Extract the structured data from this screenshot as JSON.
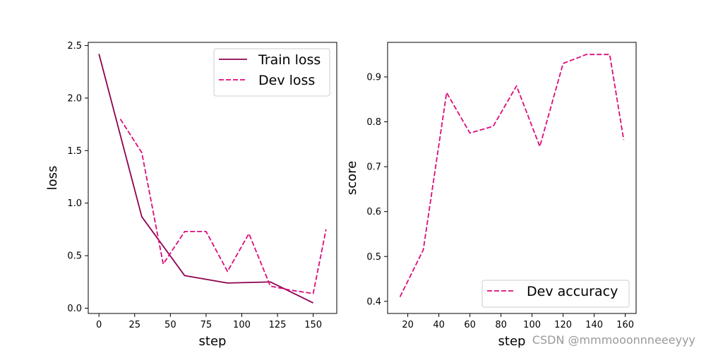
{
  "chart_data": [
    {
      "type": "line",
      "xlabel": "step",
      "ylabel": "loss",
      "xlim": [
        -7.5,
        166.5
      ],
      "ylim": [
        -0.05,
        2.53
      ],
      "xticks": [
        0,
        25,
        50,
        75,
        100,
        125,
        150
      ],
      "yticks": [
        0.0,
        0.5,
        1.0,
        1.5,
        2.0,
        2.5
      ],
      "xtick_labels": [
        "0",
        "25",
        "50",
        "75",
        "100",
        "125",
        "150"
      ],
      "ytick_labels": [
        "0.0",
        "0.5",
        "1.0",
        "1.5",
        "2.0",
        "2.5"
      ],
      "legend_position": "top-right",
      "series": [
        {
          "name": "Train loss",
          "style": "solid",
          "color": "#8e0152",
          "x": [
            0,
            30,
            60,
            90,
            120,
            150
          ],
          "y": [
            2.42,
            0.87,
            0.31,
            0.24,
            0.25,
            0.05
          ]
        },
        {
          "name": "Dev loss",
          "style": "dashed",
          "color": "#de0b7b",
          "x": [
            15,
            30,
            45,
            60,
            75,
            90,
            105,
            120,
            135,
            150,
            159
          ],
          "y": [
            1.8,
            1.48,
            0.42,
            0.73,
            0.73,
            0.35,
            0.71,
            0.21,
            0.17,
            0.14,
            0.75
          ]
        }
      ]
    },
    {
      "type": "line",
      "xlabel": "step",
      "ylabel": "score",
      "xlim": [
        7,
        167
      ],
      "ylim": [
        0.373,
        0.977
      ],
      "xticks": [
        20,
        40,
        60,
        80,
        100,
        120,
        140,
        160
      ],
      "yticks": [
        0.4,
        0.5,
        0.6,
        0.7,
        0.8,
        0.9
      ],
      "xtick_labels": [
        "20",
        "40",
        "60",
        "80",
        "100",
        "120",
        "140",
        "160"
      ],
      "ytick_labels": [
        "0.4",
        "0.5",
        "0.6",
        "0.7",
        "0.8",
        "0.9"
      ],
      "legend_position": "bottom-right",
      "series": [
        {
          "name": "Dev accuracy",
          "style": "dashed",
          "color": "#de0b7b",
          "x": [
            15,
            30,
            45,
            60,
            75,
            90,
            105,
            120,
            135,
            150,
            159
          ],
          "y": [
            0.41,
            0.515,
            0.865,
            0.775,
            0.79,
            0.88,
            0.745,
            0.93,
            0.95,
            0.95,
            0.76
          ]
        }
      ]
    }
  ],
  "watermark": "CSDN @mmmooonnneeeyyy"
}
